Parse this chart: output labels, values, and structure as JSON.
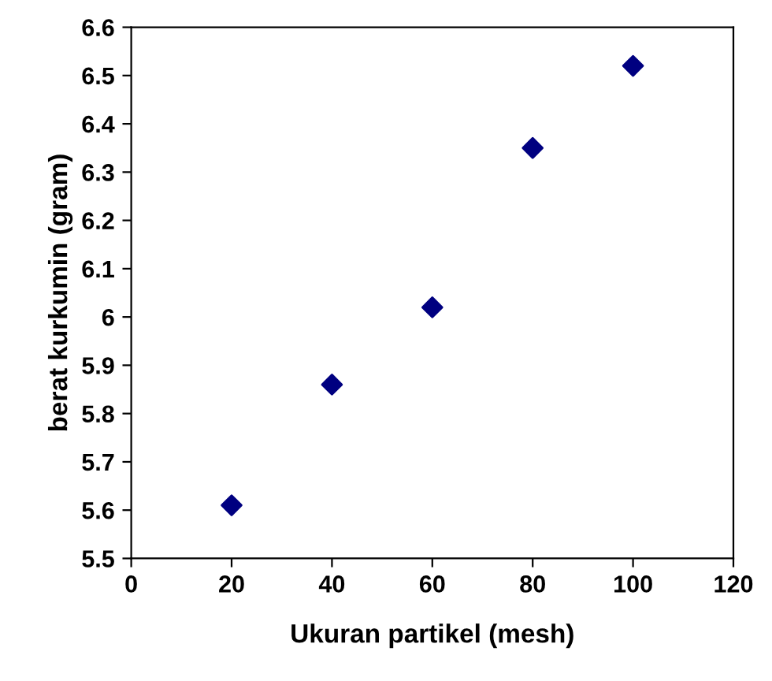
{
  "chart_data": {
    "type": "scatter",
    "xlabel": "Ukuran partikel (mesh)",
    "ylabel": "berat kurkumin (gram)",
    "x": [
      20,
      40,
      60,
      80,
      100
    ],
    "series": [
      {
        "color": "#000080",
        "values": [
          5.61,
          5.86,
          6.02,
          6.35,
          6.52
        ]
      }
    ],
    "xlim": [
      0,
      120
    ],
    "xticks": [
      0,
      20,
      40,
      60,
      80,
      100,
      120
    ],
    "ylim": [
      5.5,
      6.6
    ],
    "yticks": [
      5.5,
      5.6,
      5.7,
      5.8,
      5.9,
      6,
      6.1,
      6.2,
      6.3,
      6.4,
      6.5,
      6.6
    ],
    "marker": "diamond",
    "grid": false,
    "legend": false
  }
}
